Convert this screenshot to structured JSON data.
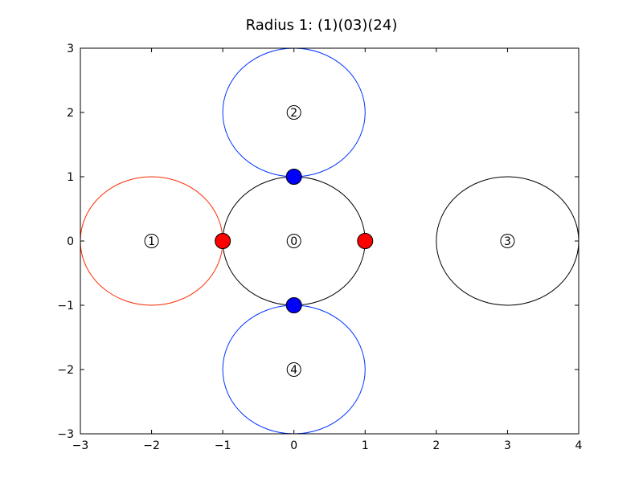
{
  "chart_data": {
    "type": "scatter",
    "title": "Radius 1:  (1)(03)(24)",
    "xlabel": "",
    "ylabel": "",
    "xlim": [
      -3,
      4
    ],
    "ylim": [
      -3,
      3
    ],
    "xticks": [
      -3,
      -2,
      -1,
      0,
      1,
      2,
      3,
      4
    ],
    "yticks": [
      -3,
      -2,
      -1,
      0,
      1,
      2,
      3
    ],
    "xtick_labels": [
      "−3",
      "−2",
      "−1",
      "0",
      "1",
      "2",
      "3",
      "4"
    ],
    "ytick_labels": [
      "−3",
      "−2",
      "−1",
      "0",
      "1",
      "2",
      "3"
    ],
    "grid": false,
    "circles": [
      {
        "label": "0",
        "cx": 0,
        "cy": 0,
        "r": 1,
        "color": "#000000"
      },
      {
        "label": "1",
        "cx": -2,
        "cy": 0,
        "r": 1,
        "color": "#ff2a00"
      },
      {
        "label": "2",
        "cx": 0,
        "cy": 2,
        "r": 1,
        "color": "#0033ff"
      },
      {
        "label": "3",
        "cx": 3,
        "cy": 0,
        "r": 1,
        "color": "#000000"
      },
      {
        "label": "4",
        "cx": 0,
        "cy": -2,
        "r": 1,
        "color": "#0033ff"
      }
    ],
    "points": [
      {
        "x": -1,
        "y": 0,
        "color": "#ff0000"
      },
      {
        "x": 1,
        "y": 0,
        "color": "#ff0000"
      },
      {
        "x": 0,
        "y": 1,
        "color": "#0000ff"
      },
      {
        "x": 0,
        "y": -1,
        "color": "#0000ff"
      }
    ]
  }
}
